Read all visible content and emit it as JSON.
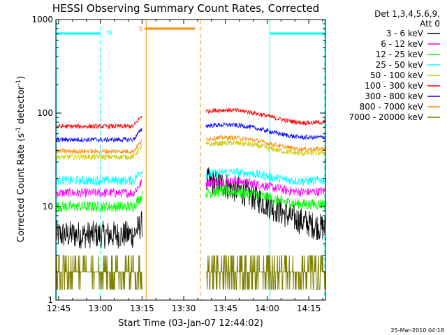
{
  "chart_data": {
    "type": "line",
    "title": "HESSI Observing Summary Count Rates, Corrected",
    "xlabel": "Start Time (03-Jan-07 12:44:02)",
    "ylabel_main": "Corrected Count Rate (s",
    "ylabel_sup1": "-1",
    "ylabel_mid": " detector",
    "ylabel_sup2": "-1",
    "ylabel_end": ")",
    "y_scale": "log",
    "ylim": [
      1,
      1000
    ],
    "xlim_minutes": [
      0,
      97
    ],
    "x_ticks": [
      {
        "m": 1,
        "label": "12:45"
      },
      {
        "m": 16,
        "label": "13:00"
      },
      {
        "m": 31,
        "label": "13:15"
      },
      {
        "m": 46,
        "label": "13:30"
      },
      {
        "m": 61,
        "label": "13:45"
      },
      {
        "m": 76,
        "label": "14:00"
      },
      {
        "m": 91,
        "label": "14:15"
      }
    ],
    "y_ticks": [
      {
        "v": 1,
        "label": "1"
      },
      {
        "v": 10,
        "label": "10"
      },
      {
        "v": 100,
        "label": "100"
      },
      {
        "v": 1000,
        "label": "1000"
      }
    ],
    "legend_header": [
      "Det 1,3,4,5,6,9,",
      "Att 0"
    ],
    "legend_position": "right",
    "series": [
      {
        "name": "3 - 6 keV",
        "color": "#000000",
        "before": 5.0,
        "after_start": 19,
        "after_end": 6,
        "noise": 0.15
      },
      {
        "name": "6 - 12 keV",
        "color": "#ff00ff",
        "before": 14,
        "after_start": 18,
        "after_end": 15,
        "noise": 0.05
      },
      {
        "name": "12 - 25 keV",
        "color": "#00ff00",
        "before": 10,
        "after_start": 14,
        "after_end": 11,
        "noise": 0.06
      },
      {
        "name": "25 - 50 keV",
        "color": "#00ffff",
        "before": 19,
        "after_start": 22,
        "after_end": 20,
        "noise": 0.05
      },
      {
        "name": "50 - 100 keV",
        "color": "#cccc00",
        "before": 34,
        "after_start": 46,
        "after_end": 39,
        "noise": 0.03
      },
      {
        "name": "100 - 300 keV",
        "color": "#ff0000",
        "before": 72,
        "after_start": 105,
        "after_end": 82,
        "noise": 0.025
      },
      {
        "name": "300 - 800 keV",
        "color": "#0000ff",
        "before": 52,
        "after_start": 73,
        "after_end": 57,
        "noise": 0.025
      },
      {
        "name": "800 - 7000 keV",
        "color": "#ff8c00",
        "before": 39,
        "after_start": 53,
        "after_end": 43,
        "noise": 0.025
      },
      {
        "name": "7000 - 20000 keV",
        "color": "#808000",
        "before": 2,
        "after_start": 2,
        "after_end": 2,
        "noise": 0.0
      }
    ],
    "segments": {
      "before": [
        0,
        31
      ],
      "gap": [
        31,
        54
      ],
      "after": [
        54,
        97
      ]
    },
    "markers": {
      "n_label": "N",
      "s_label": "S",
      "night_bars": [
        [
          0,
          16
        ],
        [
          77,
          97
        ]
      ],
      "saa_bar": [
        32,
        50
      ],
      "night_color": "#00ffff",
      "saa_color": "#ff8c00"
    },
    "footer_date": "25-Mar-2010 04:18"
  }
}
